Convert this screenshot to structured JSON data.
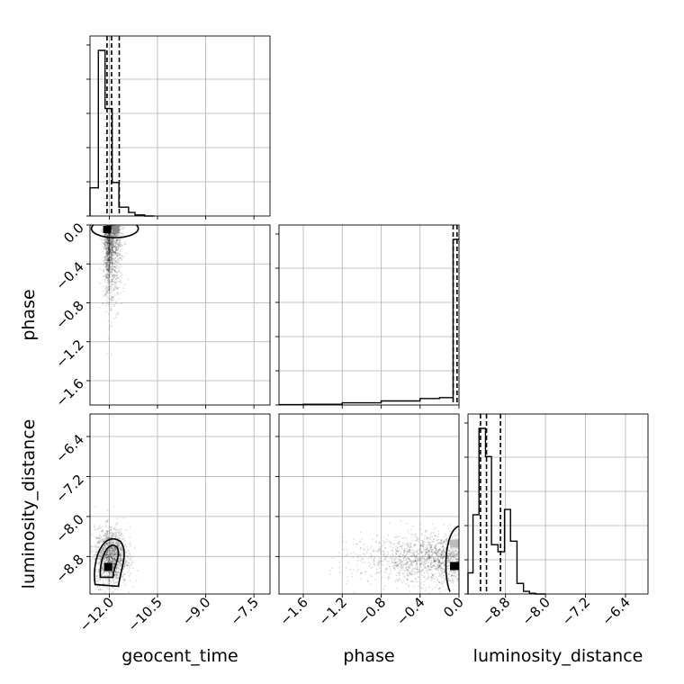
{
  "chart_data": {
    "type": "corner",
    "parameters": [
      "geocent_time",
      "phase",
      "luminosity_distance"
    ],
    "colors": {
      "line": "#000000",
      "grid": "#b0b0b0",
      "points": "#000000",
      "background": "#ffffff"
    },
    "grid": true,
    "quantile_style": "dashed",
    "ranges": {
      "geocent_time": [
        -12.6,
        -7.0
      ],
      "phase": [
        -1.85,
        0.0
      ],
      "luminosity_distance": [
        -9.55,
        -5.95
      ]
    },
    "ticks": {
      "geocent_time": {
        "values": [
          -12.0,
          -10.5,
          -9.0,
          -7.5
        ],
        "labels": [
          "−12.0",
          "−10.5",
          "−9.0",
          "−7.5"
        ]
      },
      "phase": {
        "values": [
          -1.6,
          -1.2,
          -0.8,
          -0.4,
          0.0
        ],
        "labels": [
          "−1.6",
          "−1.2",
          "−0.8",
          "−0.4",
          "0.0"
        ]
      },
      "luminosity_distance": {
        "values": [
          -8.8,
          -8.0,
          -7.2,
          -6.4
        ],
        "labels": [
          "−8.8",
          "−8.0",
          "−7.2",
          "−6.4"
        ]
      }
    },
    "histograms": {
      "geocent_time": {
        "bin_edges": [
          -12.6,
          -12.34,
          -12.13,
          -11.91,
          -11.7,
          -11.4,
          -11.2,
          -10.9,
          -10.6
        ],
        "counts": [
          0.16,
          0.94,
          0.61,
          0.19,
          0.05,
          0.02,
          0.006,
          0.0
        ],
        "quantiles": [
          -12.07,
          -11.93,
          -11.69
        ]
      },
      "phase": {
        "bin_edges": [
          -1.85,
          -1.6,
          -1.2,
          -0.8,
          -0.4,
          -0.2,
          -0.06,
          -0.02,
          0.0
        ],
        "counts": [
          0.002,
          0.004,
          0.012,
          0.022,
          0.035,
          0.04,
          0.9,
          0.9
        ],
        "quantiles": [
          -0.06,
          -0.02
        ]
      },
      "luminosity_distance": {
        "bin_edges": [
          -9.55,
          -9.45,
          -9.33,
          -9.2,
          -9.08,
          -8.95,
          -8.82,
          -8.7,
          -8.57,
          -8.44,
          -8.32,
          -8.2,
          -8.0
        ],
        "counts": [
          0.12,
          0.45,
          0.94,
          0.78,
          0.28,
          0.24,
          0.48,
          0.3,
          0.06,
          0.015,
          0.004,
          0.0
        ],
        "quantiles": [
          -9.3,
          -9.18,
          -8.9
        ]
      }
    },
    "scatter_regions": {
      "phase_vs_geocent_time": {
        "x_center": -11.98,
        "x_spread": 0.18,
        "y_center": -0.3,
        "y_spread": 0.35,
        "n": 1400,
        "density_peak": [
          -12.05,
          -0.05
        ]
      },
      "luminosity_distance_vs_geocent_time": {
        "x_center": -11.95,
        "x_spread": 0.25,
        "y_center": -8.8,
        "y_spread": 0.28,
        "n": 1400,
        "density_peak": [
          -12.05,
          -9.0
        ]
      },
      "luminosity_distance_vs_phase": {
        "x_center": -0.3,
        "x_spread": 0.4,
        "y_center": -8.85,
        "y_spread": 0.25,
        "n": 1400,
        "density_peak": [
          -0.02,
          -9.0
        ]
      }
    }
  }
}
